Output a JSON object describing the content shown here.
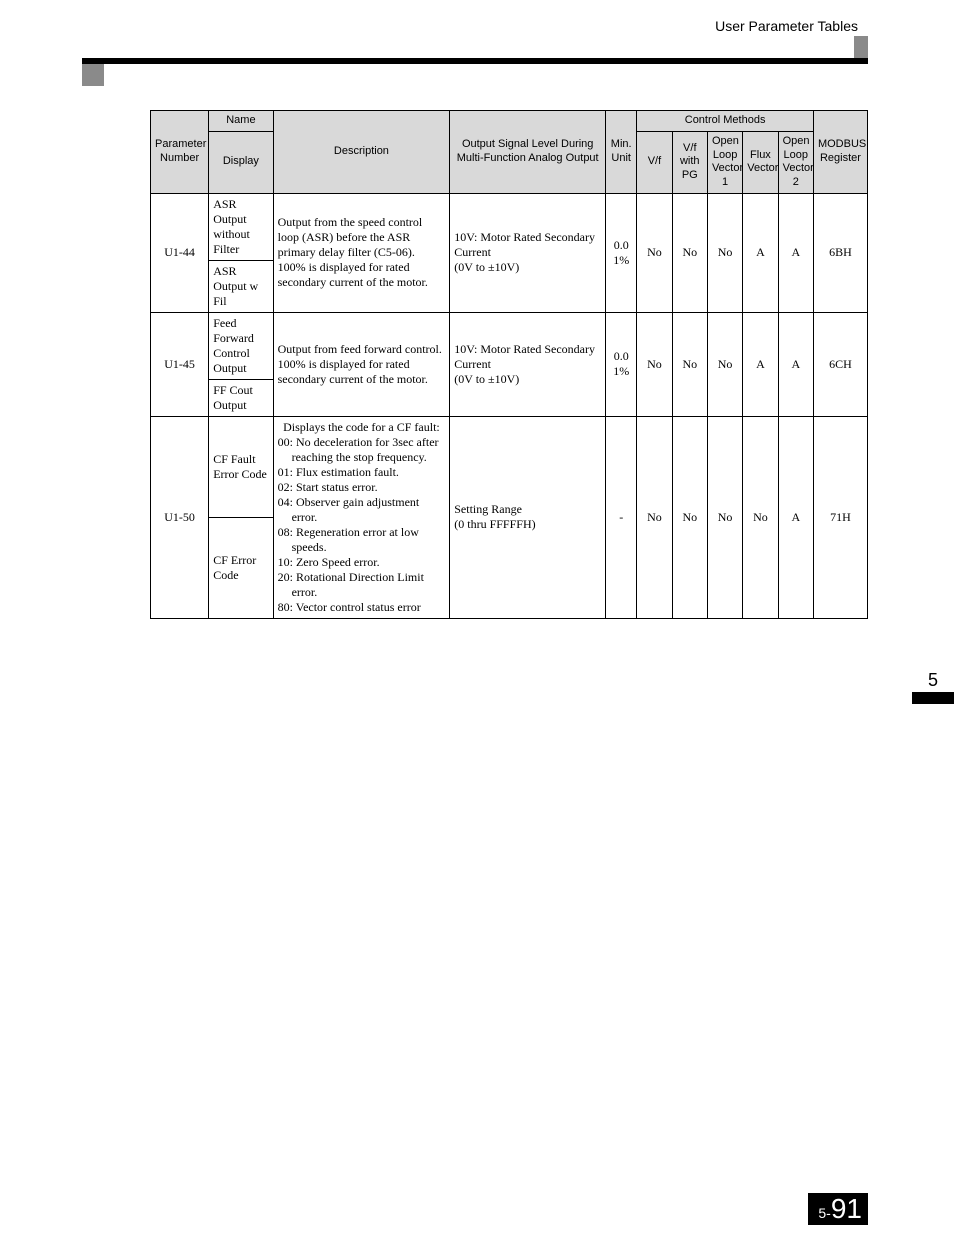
{
  "header": {
    "title": "User Parameter Tables",
    "chapter_tab": "5",
    "page_prefix": "5-",
    "page_number": "91"
  },
  "table": {
    "headers": {
      "parameter_number": "Parameter Number",
      "name": "Name",
      "display": "Display",
      "description": "Description",
      "output_signal": "Output Signal Level During Multi-Function Analog Output",
      "min_unit": "Min. Unit",
      "control_methods": "Control Methods",
      "vf": "V/f",
      "vf_pg": "V/f with PG",
      "olv1": "Open Loop Vector 1",
      "flux": "Flux Vector",
      "olv2": "Open Loop Vector 2",
      "modbus": "MODBUS Register"
    },
    "rows": [
      {
        "param": "U1-44",
        "name": "ASR Output without Filter",
        "display": "ASR Output w Fil",
        "description": "Output from the speed control loop (ASR) before the ASR primary delay filter (C5-06). 100% is displayed for rated secondary current of the motor.",
        "output": "10V: Motor Rated Secondary Current\n(0V to ±10V)",
        "min": "0.0 1%",
        "vf": "No",
        "vf_pg": "No",
        "olv1": "No",
        "flux": "A",
        "olv2": "A",
        "modbus": "6BH"
      },
      {
        "param": "U1-45",
        "name": "Feed Forward Control Output",
        "display": "FF Cout Output",
        "description": "Output from feed forward control. 100% is displayed for rated secondary current of the motor.",
        "output": "10V: Motor Rated Secondary Current\n(0V to ±10V)",
        "min": "0.0 1%",
        "vf": "No",
        "vf_pg": "No",
        "olv1": "No",
        "flux": "A",
        "olv2": "A",
        "modbus": "6CH"
      },
      {
        "param": "U1-50",
        "name": "CF Fault Error Code",
        "display": "CF Error Code",
        "description_intro": "Displays the code for a CF fault:",
        "description_items": [
          "00: No deceleration for 3sec after reaching the stop frequency.",
          "01: Flux estimation fault.",
          "02: Start status error.",
          "04: Observer gain adjustment error.",
          "08: Regeneration error at low speeds.",
          "10: Zero Speed error.",
          "20: Rotational Direction Limit error.",
          "80: Vector control status error"
        ],
        "output": "Setting Range\n(0 thru FFFFFH)",
        "min": "-",
        "vf": "No",
        "vf_pg": "No",
        "olv1": "No",
        "flux": "No",
        "olv2": "A",
        "modbus": "71H"
      }
    ]
  }
}
